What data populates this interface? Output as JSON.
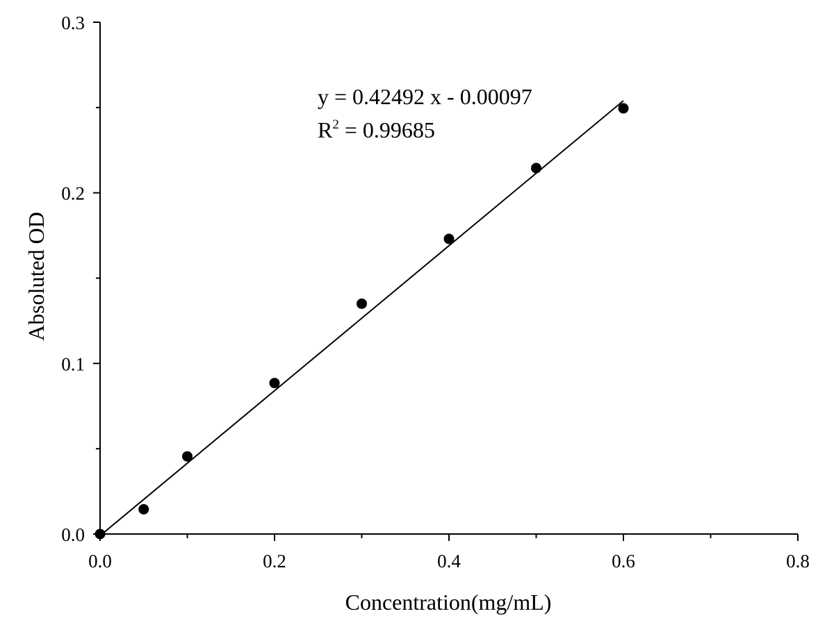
{
  "chart_data": {
    "type": "scatter",
    "title": "",
    "xlabel": "Concentration(mg/mL)",
    "ylabel": "Absoluted OD",
    "xlim": [
      0.0,
      0.8
    ],
    "ylim": [
      0.0,
      0.3
    ],
    "x_ticks": [
      "0.0",
      "0.2",
      "0.4",
      "0.6",
      "0.8"
    ],
    "y_ticks": [
      "0.0",
      "0.1",
      "0.2",
      "0.3"
    ],
    "grid": false,
    "legend": "none",
    "series": [
      {
        "x": [
          0.0,
          0.05,
          0.1,
          0.2,
          0.3,
          0.4,
          0.5,
          0.6
        ],
        "y": [
          0.0,
          0.0145,
          0.0455,
          0.0885,
          0.135,
          0.173,
          0.2145,
          0.2495
        ]
      }
    ],
    "fit": {
      "slope": 0.42492,
      "intercept": -0.00097,
      "x_range": [
        0.0,
        0.6
      ]
    },
    "annotations": {
      "equation": "y = 0.42492 x - 0.00097",
      "r2_prefix": "R",
      "r2_sup": "2",
      "r2_value": " = 0.99685"
    },
    "colors": {
      "axis": "#000000",
      "points": "#000000",
      "fit_line": "#000000"
    }
  }
}
